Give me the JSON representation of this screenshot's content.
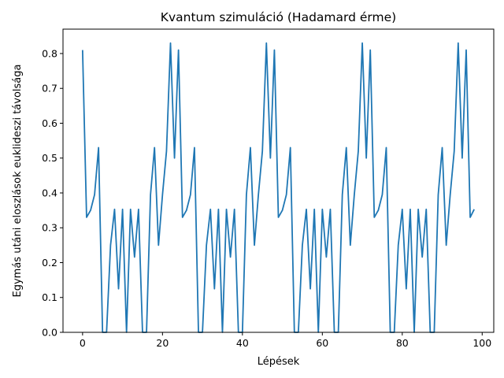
{
  "chart_data": {
    "type": "line",
    "title": "Kvantum szimuláció (Hadamard érme)",
    "xlabel": "Lépések",
    "ylabel": "Egymás utáni eloszlások euklideszi távolsága",
    "xlim": [
      -4.9,
      102.9
    ],
    "ylim": [
      0,
      0.87
    ],
    "xticks": [
      0,
      20,
      40,
      60,
      80,
      100
    ],
    "yticks": [
      0.0,
      0.1,
      0.2,
      0.3,
      0.4,
      0.5,
      0.6,
      0.7,
      0.8
    ],
    "xtick_labels": [
      "0",
      "20",
      "40",
      "60",
      "80",
      "100"
    ],
    "ytick_labels": [
      "0.0",
      "0.1",
      "0.2",
      "0.3",
      "0.4",
      "0.5",
      "0.6",
      "0.7",
      "0.8"
    ],
    "grid": false,
    "series": [
      {
        "color": "#1f77b4",
        "x": [
          0,
          1,
          2,
          3,
          4,
          5,
          6,
          7,
          8,
          9,
          10,
          11,
          12,
          13,
          14,
          15,
          16,
          17,
          18,
          19,
          20,
          21,
          22,
          23,
          24,
          25,
          26,
          27,
          28,
          29,
          30,
          31,
          32,
          33,
          34,
          35,
          36,
          37,
          38,
          39,
          40,
          41,
          42,
          43,
          44,
          45,
          46,
          47,
          48,
          49,
          50,
          51,
          52,
          53,
          54,
          55,
          56,
          57,
          58,
          59,
          60,
          61,
          62,
          63,
          64,
          65,
          66,
          67,
          68,
          69,
          70,
          71,
          72,
          73,
          74,
          75,
          76,
          77,
          78,
          79,
          80,
          81,
          82,
          83,
          84,
          85,
          86,
          87,
          88,
          89,
          90,
          91,
          92,
          93,
          94,
          95,
          96,
          97,
          98
        ],
        "values": [
          0.81,
          0.33,
          0.35,
          0.395,
          0.53,
          0.0,
          0.0,
          0.25,
          0.353,
          0.125,
          0.353,
          0.0,
          0.353,
          0.216,
          0.353,
          0.0,
          0.0,
          0.395,
          0.53,
          0.25,
          0.395,
          0.52,
          0.83,
          0.5,
          0.81,
          0.33,
          0.35,
          0.395,
          0.53,
          0.0,
          0.0,
          0.25,
          0.353,
          0.125,
          0.353,
          0.0,
          0.353,
          0.216,
          0.353,
          0.0,
          0.0,
          0.395,
          0.53,
          0.25,
          0.395,
          0.52,
          0.83,
          0.5,
          0.81,
          0.33,
          0.35,
          0.395,
          0.53,
          0.0,
          0.0,
          0.25,
          0.353,
          0.125,
          0.353,
          0.0,
          0.353,
          0.216,
          0.353,
          0.0,
          0.0,
          0.395,
          0.53,
          0.25,
          0.395,
          0.52,
          0.83,
          0.5,
          0.81,
          0.33,
          0.35,
          0.395,
          0.53,
          0.0,
          0.0,
          0.25,
          0.353,
          0.125,
          0.353,
          0.0,
          0.353,
          0.216,
          0.353,
          0.0,
          0.0,
          0.395,
          0.53,
          0.25,
          0.395,
          0.52,
          0.83,
          0.5,
          0.81,
          0.33,
          0.353
        ]
      }
    ]
  }
}
